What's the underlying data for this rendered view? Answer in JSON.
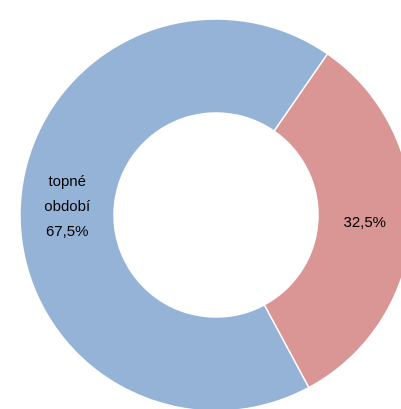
{
  "chart_data": {
    "type": "donut",
    "categories": [
      "topné období",
      null
    ],
    "values": [
      67.5,
      32.5
    ],
    "value_labels": [
      "67,5%",
      "32,5%"
    ],
    "colors": [
      "#95b3d7",
      "#d99694"
    ]
  }
}
